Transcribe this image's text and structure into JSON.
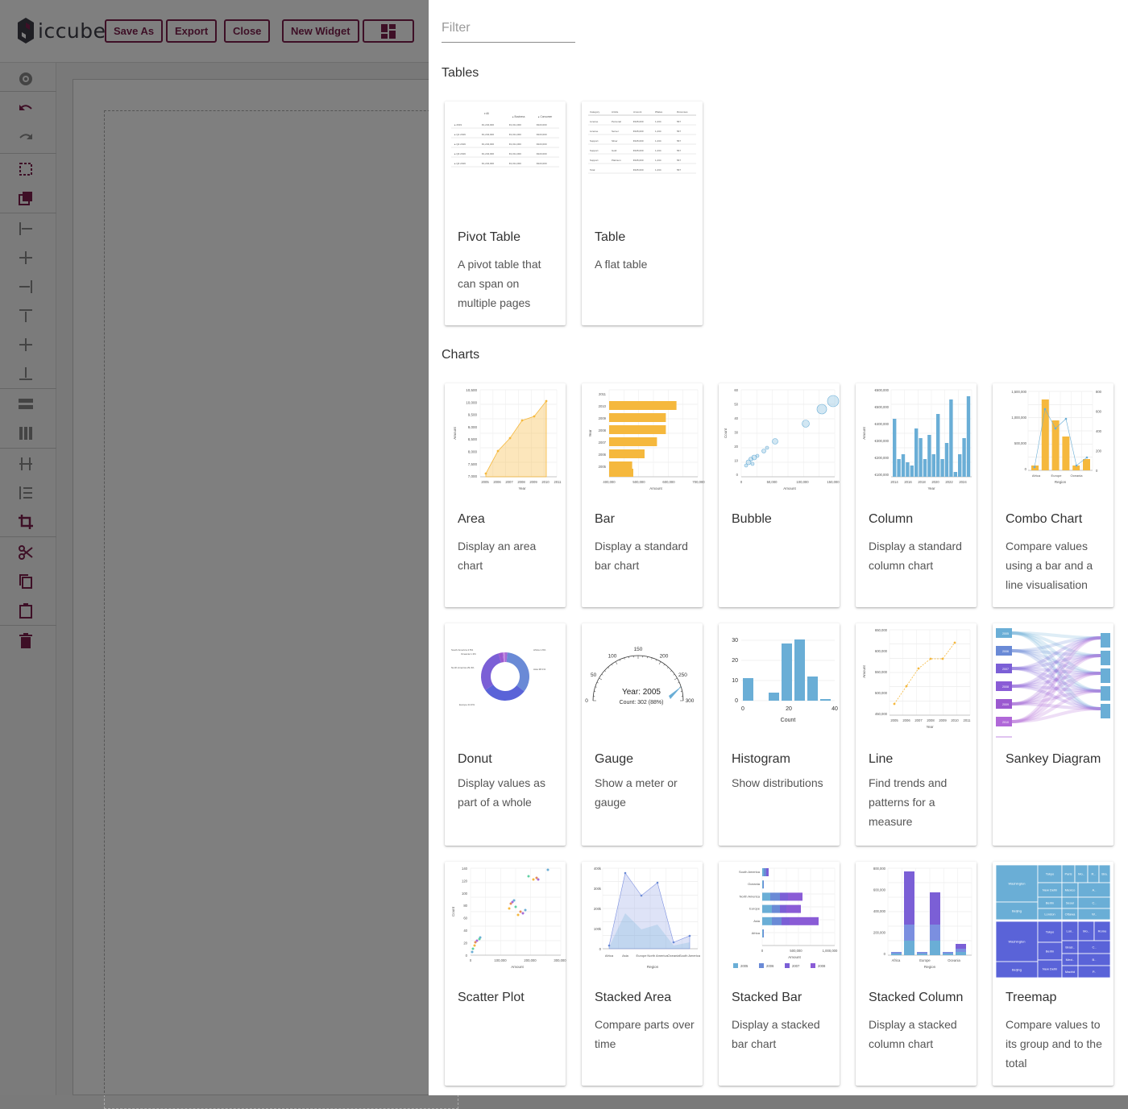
{
  "app": {
    "logo_text": "iccube",
    "toolbar": [
      {
        "label": "Save As"
      },
      {
        "label": "Export"
      },
      {
        "label": "Close"
      },
      {
        "label": "New Widget"
      }
    ]
  },
  "drawer": {
    "filter": {
      "placeholder": "Filter",
      "value": ""
    },
    "sections": [
      {
        "title": "Tables",
        "widgets": [
          {
            "name": "Pivot Table",
            "description": "A pivot table that can span on multiple pages",
            "thumb": "pivot"
          },
          {
            "name": "Table",
            "description": "A flat table",
            "thumb": "table"
          }
        ]
      },
      {
        "title": "Charts",
        "widgets": [
          {
            "name": "Area",
            "description": "Display an area chart",
            "thumb": "area"
          },
          {
            "name": "Bar",
            "description": "Display a standard bar chart",
            "thumb": "bar"
          },
          {
            "name": "Bubble",
            "description": "",
            "thumb": "bubble"
          },
          {
            "name": "Column",
            "description": "Display a standard column chart",
            "thumb": "column"
          },
          {
            "name": "Combo Chart",
            "description": "Compare values using a bar and a line visualisation",
            "thumb": "combo"
          },
          {
            "name": "Donut",
            "description": "Display values as part of a whole",
            "thumb": "donut"
          },
          {
            "name": "Gauge",
            "description": "Show a meter or gauge",
            "thumb": "gauge"
          },
          {
            "name": "Histogram",
            "description": "Show distributions",
            "thumb": "histogram"
          },
          {
            "name": "Line",
            "description": "Find trends and patterns for a measure",
            "thumb": "line"
          },
          {
            "name": "Sankey Diagram",
            "description": "",
            "thumb": "sankey"
          },
          {
            "name": "Scatter Plot",
            "description": "",
            "thumb": "scatter"
          },
          {
            "name": "Stacked Area",
            "description": "Compare parts over time",
            "thumb": "stackedarea"
          },
          {
            "name": "Stacked Bar",
            "description": "Display a stacked bar chart",
            "thumb": "stackedbar"
          },
          {
            "name": "Stacked Column",
            "description": "Display a stacked column chart",
            "thumb": "stackedcolumn"
          },
          {
            "name": "Treemap",
            "description": "Compare values to its group and to the total",
            "thumb": "treemap"
          }
        ]
      }
    ]
  },
  "thumb_text": {
    "gauge_title": "Year: 2005",
    "gauge_sub": "Count: 302 (88%)",
    "gauge_ticks": [
      "0",
      "50",
      "100",
      "150",
      "200",
      "250",
      "300"
    ],
    "histogram_x": [
      "0",
      "20",
      "40"
    ],
    "histogram_y": [
      "0",
      "10",
      "20",
      "30"
    ],
    "histogram_xlabel": "Count"
  },
  "colors": {
    "accent": "#7d1f4d",
    "area": "#f5b83d",
    "bar": "#f5b83d",
    "blue": "#6aaed6",
    "purple": "#7b5fd6",
    "violet": "#9b59d0"
  }
}
